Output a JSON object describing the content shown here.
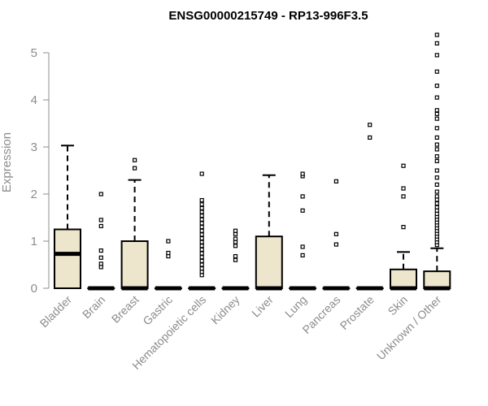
{
  "chart_data": {
    "type": "box",
    "title": "ENSG00000215749 - RP13-996F3.5",
    "ylabel": "Expression",
    "xlabel": "",
    "ylim": [
      0,
      5
    ],
    "yticks": [
      "0",
      "1",
      "2",
      "3",
      "4",
      "5"
    ],
    "grid": false,
    "colors": {
      "box_fill": "#ede6cc",
      "box_stroke": "#000000",
      "axis": "#8c8c8c"
    },
    "categories": [
      "Bladder",
      "Brain",
      "Breast",
      "Gastric",
      "Hematopoietic cells",
      "Kidney",
      "Liver",
      "Lung",
      "Pancreas",
      "Prostate",
      "Skin",
      "Unknown / Other"
    ],
    "boxes": [
      {
        "category": "Bladder",
        "q1": 0,
        "median": 0.73,
        "q3": 1.25,
        "whisker_low": 0,
        "whisker_high": 3.03,
        "outliers": []
      },
      {
        "category": "Brain",
        "q1": 0,
        "median": 0,
        "q3": 0,
        "whisker_low": 0,
        "whisker_high": 0,
        "outliers": [
          0.45,
          0.52,
          0.65,
          0.8,
          1.32,
          1.45,
          2.0
        ]
      },
      {
        "category": "Breast",
        "q1": 0,
        "median": 0,
        "q3": 1.0,
        "whisker_low": 0,
        "whisker_high": 2.3,
        "outliers": [
          2.55,
          2.72
        ]
      },
      {
        "category": "Gastric",
        "q1": 0,
        "median": 0,
        "q3": 0,
        "whisker_low": 0,
        "whisker_high": 0,
        "outliers": [
          0.68,
          0.75,
          1.0
        ]
      },
      {
        "category": "Hematopoietic cells",
        "q1": 0,
        "median": 0,
        "q3": 0,
        "whisker_low": 0,
        "whisker_high": 0,
        "outliers": [
          0.28,
          0.35,
          0.42,
          0.5,
          0.58,
          0.66,
          0.74,
          0.82,
          0.9,
          0.98,
          1.06,
          1.14,
          1.22,
          1.3,
          1.38,
          1.46,
          1.54,
          1.62,
          1.7,
          1.78,
          1.87,
          2.43
        ]
      },
      {
        "category": "Kidney",
        "q1": 0,
        "median": 0,
        "q3": 0,
        "whisker_low": 0,
        "whisker_high": 0,
        "outliers": [
          0.6,
          0.68,
          0.9,
          0.98,
          1.05,
          1.15,
          1.22
        ]
      },
      {
        "category": "Liver",
        "q1": 0,
        "median": 0,
        "q3": 1.1,
        "whisker_low": 0,
        "whisker_high": 2.4,
        "outliers": []
      },
      {
        "category": "Lung",
        "q1": 0,
        "median": 0,
        "q3": 0,
        "whisker_low": 0,
        "whisker_high": 0,
        "outliers": [
          0.7,
          0.88,
          1.65,
          1.95,
          2.38,
          2.43
        ]
      },
      {
        "category": "Pancreas",
        "q1": 0,
        "median": 0,
        "q3": 0,
        "whisker_low": 0,
        "whisker_high": 0,
        "outliers": [
          0.93,
          1.15,
          2.27
        ]
      },
      {
        "category": "Prostate",
        "q1": 0,
        "median": 0,
        "q3": 0,
        "whisker_low": 0,
        "whisker_high": 0,
        "outliers": [
          3.2,
          3.47
        ]
      },
      {
        "category": "Skin",
        "q1": 0,
        "median": 0,
        "q3": 0.4,
        "whisker_low": 0,
        "whisker_high": 0.77,
        "outliers": [
          1.3,
          1.95,
          2.12,
          2.6
        ]
      },
      {
        "category": "Unknown / Other",
        "q1": 0,
        "median": 0,
        "q3": 0.36,
        "whisker_low": 0,
        "whisker_high": 0.85,
        "outliers": [
          0.92,
          0.98,
          1.04,
          1.1,
          1.16,
          1.22,
          1.28,
          1.34,
          1.4,
          1.46,
          1.52,
          1.58,
          1.65,
          1.72,
          1.8,
          1.88,
          1.95,
          2.05,
          2.2,
          2.35,
          2.5,
          2.7,
          2.8,
          2.95,
          3.05,
          3.2,
          3.4,
          3.6,
          3.7,
          3.78,
          4.05,
          4.3,
          4.6,
          4.95,
          5.2,
          5.38
        ]
      }
    ]
  }
}
